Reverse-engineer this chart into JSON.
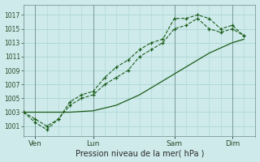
{
  "background_color": "#ceeaea",
  "grid_color": "#b0d8d8",
  "line_color": "#1a5c1a",
  "xlabel": "Pression niveau de la mer( hPa )",
  "ylim": [
    999.5,
    1018.5
  ],
  "yticks": [
    1001,
    1003,
    1005,
    1007,
    1009,
    1011,
    1013,
    1015,
    1017
  ],
  "xlim": [
    0,
    10.0
  ],
  "day_labels": [
    "Ven",
    "Lun",
    "Sam",
    "Dim"
  ],
  "day_positions": [
    0.5,
    3.0,
    6.5,
    9.0
  ],
  "vline_positions": [
    0.5,
    3.0,
    6.5,
    9.0
  ],
  "series1_dotted": {
    "x": [
      0.0,
      0.5,
      1.0,
      1.5,
      2.0,
      2.5,
      3.0,
      3.5,
      4.0,
      4.5,
      5.0,
      5.5,
      6.0,
      6.5,
      7.0,
      7.5,
      8.0,
      8.5,
      9.0,
      9.5
    ],
    "y": [
      1003,
      1001.5,
      1000.5,
      1002,
      1004.5,
      1005.5,
      1006,
      1008,
      1009.5,
      1010.5,
      1012,
      1013,
      1013.5,
      1016.5,
      1016.5,
      1017,
      1016.5,
      1015,
      1015.5,
      1014
    ]
  },
  "series2_dotted": {
    "x": [
      0.0,
      0.5,
      1.0,
      1.5,
      2.0,
      2.5,
      3.0,
      3.5,
      4.0,
      4.5,
      5.0,
      5.5,
      6.0,
      6.5,
      7.0,
      7.5,
      8.0,
      8.5,
      9.0,
      9.5
    ],
    "y": [
      1003,
      1002,
      1001,
      1002,
      1004,
      1005,
      1005.5,
      1007,
      1008,
      1009,
      1011,
      1012,
      1013,
      1015,
      1015.5,
      1016.5,
      1015,
      1014.5,
      1015,
      1014
    ]
  },
  "series3_solid": {
    "x": [
      0.0,
      1.0,
      2.0,
      3.0,
      4.0,
      5.0,
      6.0,
      7.0,
      8.0,
      9.0,
      9.5
    ],
    "y": [
      1003,
      1003,
      1003,
      1003.2,
      1004,
      1005.5,
      1007.5,
      1009.5,
      1011.5,
      1013,
      1013.5
    ]
  }
}
